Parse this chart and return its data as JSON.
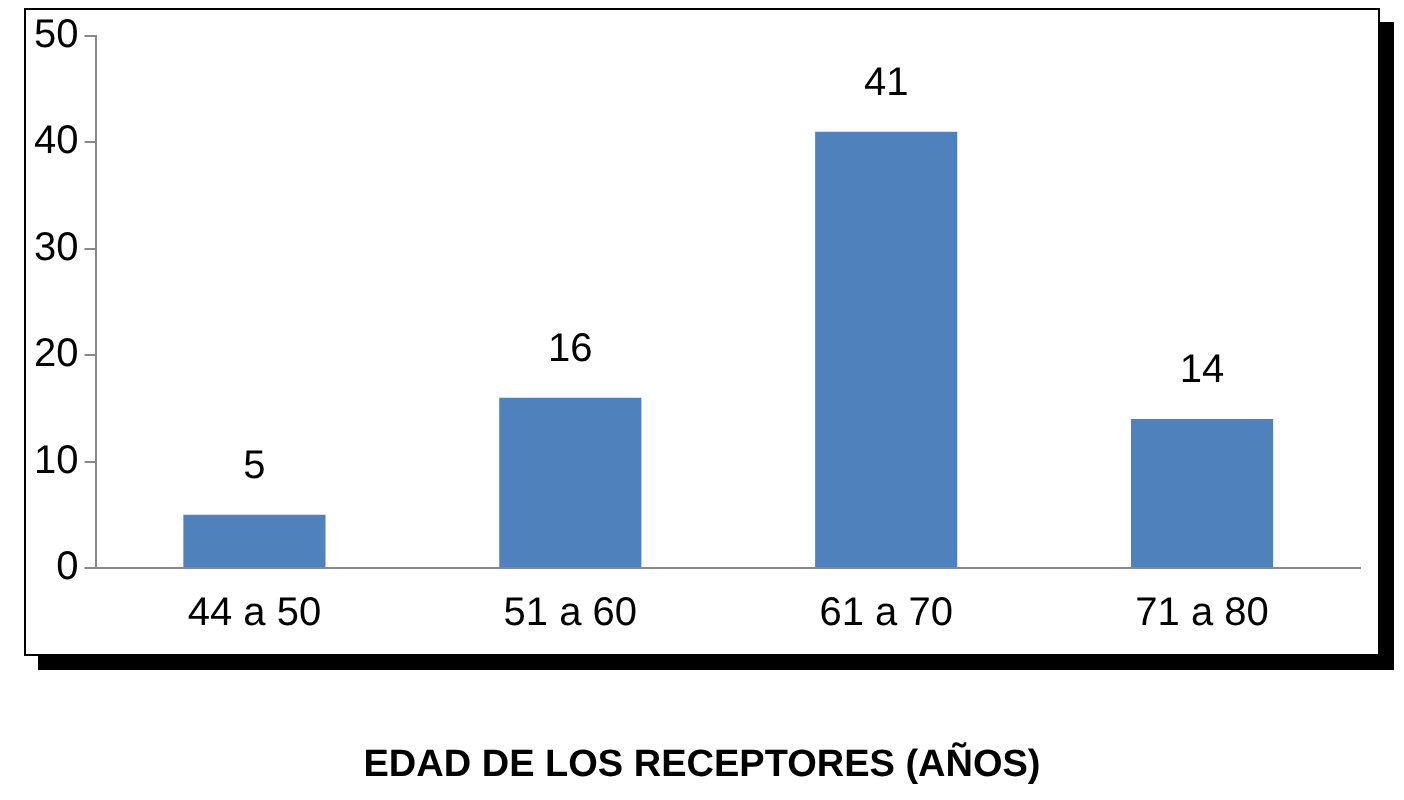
{
  "chart_data": {
    "type": "bar",
    "xlabel": "EDAD DE LOS RECEPTORES (AÑOS)",
    "categories": [
      "44 a 50",
      "51 a 60",
      "61 a 70",
      "71 a 80"
    ],
    "values": [
      5,
      16,
      41,
      14
    ],
    "color": "#4f81bd",
    "ylim": [
      0,
      50
    ],
    "yticks": [
      0,
      10,
      20,
      30,
      40,
      50
    ],
    "grid": false,
    "data_labels": true
  }
}
